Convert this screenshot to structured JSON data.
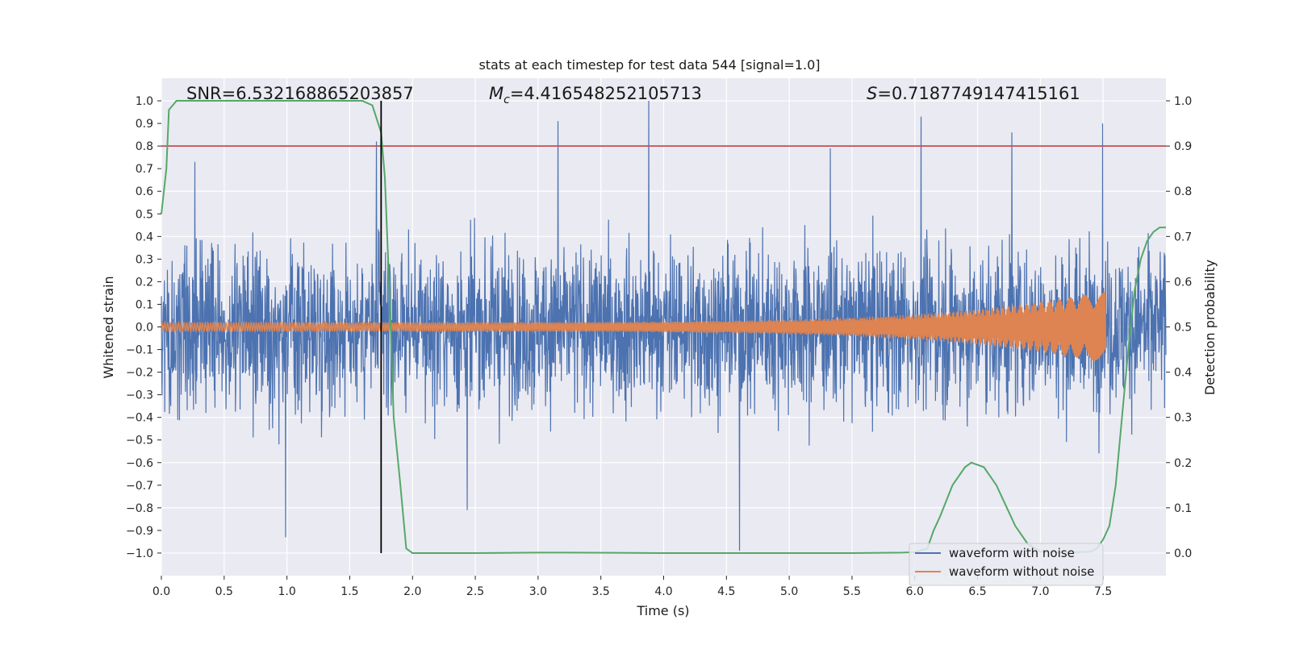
{
  "chart_data": {
    "type": "line",
    "title": "stats at each timestep for test data 544 [signal=1.0]",
    "xlabel": "Time (s)",
    "ylabel": "Whitened strain",
    "y2label": "Detection probability",
    "xlim": [
      0.0,
      8.0
    ],
    "ylim": [
      -1.1,
      1.1
    ],
    "y2lim": [
      -0.05,
      1.05
    ],
    "xticks": [
      "0.0",
      "0.5",
      "1.0",
      "1.5",
      "2.0",
      "2.5",
      "3.0",
      "3.5",
      "4.0",
      "4.5",
      "5.0",
      "5.5",
      "6.0",
      "6.5",
      "7.0",
      "7.5"
    ],
    "yticks": [
      "1.0",
      "0.9",
      "0.8",
      "0.7",
      "0.6",
      "0.5",
      "0.4",
      "0.3",
      "0.2",
      "0.1",
      "0.0",
      "−0.1",
      "−0.2",
      "−0.3",
      "−0.4",
      "−0.5",
      "−0.6",
      "−0.7",
      "−0.8",
      "−0.9",
      "−1.0"
    ],
    "y2ticks": [
      "1.0",
      "0.9",
      "0.8",
      "0.7",
      "0.6",
      "0.5",
      "0.4",
      "0.3",
      "0.2",
      "0.1",
      "0.0"
    ],
    "grid": true,
    "legend_position": "lower-right",
    "annotations": {
      "snr": "SNR=6.532168865203857",
      "mc_symbol": "M",
      "mc_sub": "c",
      "mc_value": "=4.416548252105713",
      "s_symbol": "S",
      "s_value": "=0.7187749147415161"
    },
    "series": [
      {
        "name": "waveform with noise",
        "color": "#4c72b0",
        "kind": "noise",
        "typical_envelope": 0.45,
        "peak_values": [
          0.73,
          -0.93,
          0.82,
          -0.81,
          0.91,
          1.0,
          -0.99,
          0.79,
          0.93,
          0.86,
          0.9
        ]
      },
      {
        "name": "waveform without noise",
        "color": "#dd8452",
        "kind": "chirp",
        "start_amplitude": 0.02,
        "end_amplitude": 0.16,
        "end_time": 7.52
      },
      {
        "color": "#55a868",
        "axis": "right",
        "kind": "probability",
        "x": [
          0.0,
          0.04,
          0.06,
          0.12,
          0.3,
          0.6,
          1.0,
          1.3,
          1.6,
          1.68,
          1.75,
          1.78,
          1.82,
          1.85,
          1.9,
          1.95,
          2.0,
          2.5,
          3.0,
          3.2,
          4.0,
          5.0,
          5.5,
          5.9,
          6.0,
          6.1,
          6.15,
          6.2,
          6.3,
          6.4,
          6.45,
          6.5,
          6.55,
          6.6,
          6.65,
          6.7,
          6.75,
          6.8,
          6.9,
          7.0,
          7.2,
          7.4,
          7.45,
          7.5,
          7.55,
          7.6,
          7.65,
          7.7,
          7.75,
          7.8,
          7.85,
          7.9,
          7.95,
          8.0
        ],
        "y": [
          0.75,
          0.85,
          0.98,
          1.0,
          1.0,
          1.0,
          1.0,
          1.0,
          1.0,
          0.99,
          0.93,
          0.83,
          0.55,
          0.3,
          0.16,
          0.01,
          0.0,
          0.0,
          0.001,
          0.001,
          0.0,
          0.0,
          0.0,
          0.001,
          0.002,
          0.01,
          0.05,
          0.08,
          0.15,
          0.19,
          0.2,
          0.195,
          0.19,
          0.17,
          0.15,
          0.12,
          0.09,
          0.06,
          0.02,
          0.003,
          0.001,
          0.003,
          0.01,
          0.03,
          0.06,
          0.15,
          0.3,
          0.45,
          0.58,
          0.65,
          0.69,
          0.71,
          0.72,
          0.72
        ]
      },
      {
        "color": "#c44e52",
        "axis": "right",
        "kind": "threshold",
        "value": 0.9
      },
      {
        "color": "#000000",
        "kind": "vline",
        "x": 1.75
      }
    ],
    "colors": {
      "background": "#eaeaf2",
      "grid": "#ffffff"
    }
  }
}
